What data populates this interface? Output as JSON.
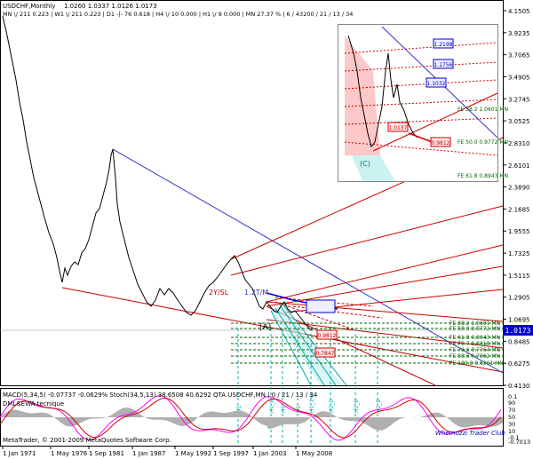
{
  "window": {
    "symbol": "USDCHF,Monthly",
    "ohlc": "1.0260 1.0337 1.0126 1.0173",
    "info_line": "MN \\/ 211   0.223 | W1 \\/ 211   0.223 | D1 -|- 76   0.618 | H4 \\/ 10   0.000 | H1 \\/ 9   0.000 | MN  27.37 % | 6 / 43200 / 21 / 13 / 34"
  },
  "price_axis": {
    "labels": [
      "4.1505",
      "3.9235",
      "3.7065",
      "3.4905",
      "3.2745",
      "3.0525",
      "2.8310",
      "2.6101",
      "2.3890",
      "2.1685",
      "1.9555",
      "1.7325",
      "1.5115",
      "1.2905",
      "1.0695",
      "0.8485",
      "0.6275",
      "0.4130"
    ],
    "current_price": "1.0173",
    "current_price_color": "#0000cc"
  },
  "time_axis": {
    "labels": [
      "1 Jan 1971",
      "1 May 1976",
      "1 Sep 1981",
      "1 Jan 1987",
      "1 May 1992",
      "1 Sep 1997",
      "1 Jan 2003",
      "1 May 2008"
    ]
  },
  "annotations": {
    "pattern_label_1": "2Y/SL",
    "pattern_label_2": "1.2T/M",
    "wave_a": "[A]",
    "fe_levels": [
      "FE 38.2 1.0601 MN",
      "FE 50.0 0.9772 MN",
      "FE 61.8 0.8943 MN",
      "FE 70.7 0.8318 MN",
      "FE 78.6 0.7764 MN",
      "FE 88.6 0.7062 MN",
      "FE 100.0 0.6261 MN"
    ],
    "boxes": [
      "0.9812",
      "0.7847"
    ],
    "h_labels": [
      "H1",
      "H1_8",
      "H1",
      "H1",
      "H1_1.6",
      "H2_0",
      "H2_6",
      "H2_8"
    ]
  },
  "inset": {
    "boxes": [
      "1.2198",
      "1.1756",
      "1.1032",
      "1.0137",
      "0.9812"
    ],
    "fe_levels": [
      "FE 38.2 1.0601 MN",
      "FE 50.0 0.9772 MN",
      "FE 61.8 0.8943 MN"
    ],
    "label_c": "(C)"
  },
  "macd": {
    "header": "MACD(5,34,5) -0.07737 -0.0629%  Stoch(34,5,13) 38.6508 40.6292  QTA USDCHF,MN | 0 / 21 / 13 / 34",
    "subtitle": "DML&EWA tecnique",
    "axis_labels": [
      "0.1",
      "90",
      "70",
      "50",
      "30",
      "10",
      "-0.1",
      "-0.7013"
    ]
  },
  "footer": {
    "copyright": "MetaTrader, © 2001-2009 MetaQuotes Software Corp.",
    "watermark": "Whemozzi Trader Club"
  },
  "colors": {
    "price_line": "#000000",
    "red_lines": "#cc0000",
    "blue_line": "#3333cc",
    "cyan_fan": "#00aaaa",
    "fe_green": "#006600",
    "macd_fill": "#b0b0b0",
    "stoch_main": "#ff00ff",
    "stoch_signal": "#cc0000"
  }
}
